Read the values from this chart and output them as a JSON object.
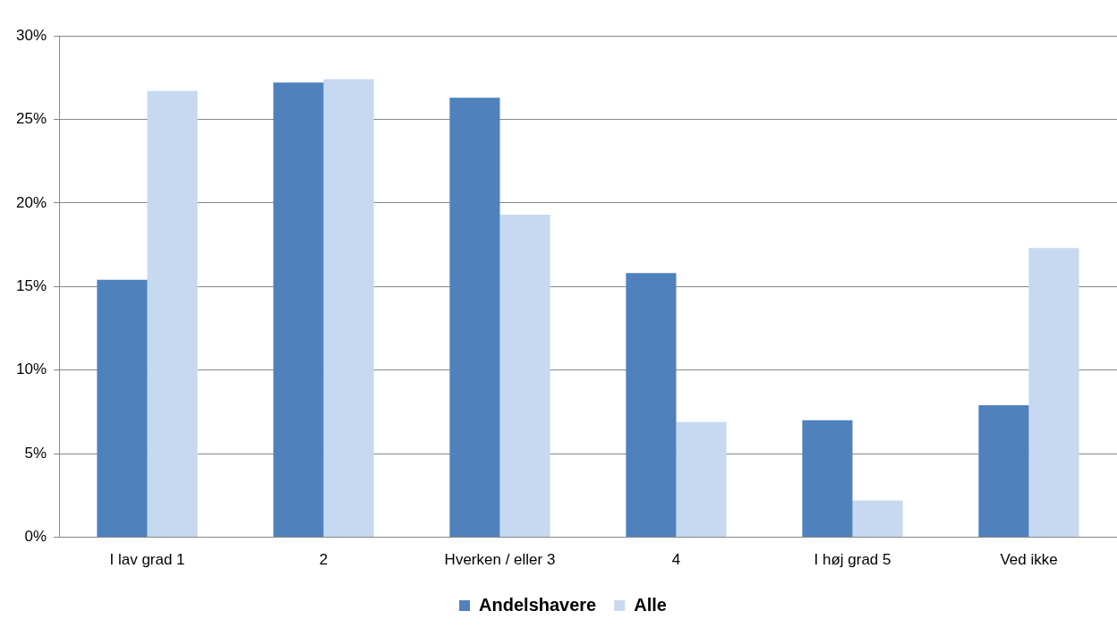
{
  "chart_data": {
    "type": "bar",
    "categories": [
      "I lav grad 1",
      "2",
      "Hverken / eller 3",
      "4",
      "I høj grad 5",
      "Ved ikke"
    ],
    "series": [
      {
        "name": "Andelshavere",
        "color": "#4f81bd",
        "values": [
          15.4,
          27.2,
          26.3,
          15.8,
          7.0,
          7.9
        ]
      },
      {
        "name": "Alle",
        "color": "#c6d9f1",
        "values": [
          26.7,
          27.4,
          19.3,
          6.9,
          2.2,
          17.3
        ]
      }
    ],
    "ylim": [
      0,
      30
    ],
    "yticks": [
      {
        "value": 0,
        "label": "0%"
      },
      {
        "value": 5,
        "label": "5%"
      },
      {
        "value": 10,
        "label": "10%"
      },
      {
        "value": 15,
        "label": "15%"
      },
      {
        "value": 20,
        "label": "20%"
      },
      {
        "value": 25,
        "label": "25%"
      },
      {
        "value": 30,
        "label": "30%"
      }
    ],
    "grid": "y",
    "legend": "bottom"
  }
}
